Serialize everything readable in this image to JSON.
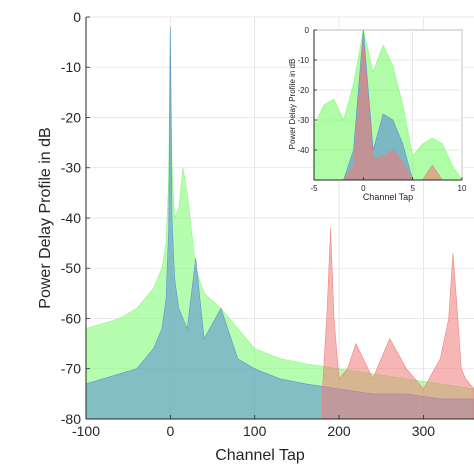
{
  "chart_data": [
    {
      "type": "area",
      "xlabel": "Channel Tap",
      "ylabel": "Power Delay Profile in dB",
      "xlim": [
        -100,
        360
      ],
      "ylim": [
        -80,
        0
      ],
      "xticks": [
        "-100",
        "0",
        "100",
        "200",
        "300"
      ],
      "yticks": [
        "0",
        "-10",
        "-20",
        "-30",
        "-40",
        "-50",
        "-60",
        "-70",
        "-80"
      ],
      "grid": true,
      "series": [
        {
          "color": "#7cfc6e",
          "x": [
            -100,
            -80,
            -60,
            -40,
            -20,
            -10,
            -5,
            -2,
            0,
            2,
            5,
            10,
            15,
            20,
            30,
            40,
            60,
            80,
            100,
            130,
            160,
            200,
            240,
            280,
            320,
            360
          ],
          "values": [
            -62,
            -61,
            -60,
            -58,
            -54,
            -50,
            -45,
            -32,
            -2,
            -30,
            -40,
            -38,
            -30,
            -35,
            -50,
            -55,
            -58,
            -62,
            -66,
            -68,
            -69,
            -70,
            -71,
            -72,
            -73,
            -74
          ]
        },
        {
          "color": "#5a8ad6",
          "x": [
            -100,
            -80,
            -60,
            -40,
            -20,
            -10,
            -5,
            -2,
            0,
            2,
            5,
            10,
            20,
            30,
            40,
            60,
            80,
            100,
            130,
            160,
            200,
            240,
            280,
            320,
            360
          ],
          "values": [
            -73,
            -72,
            -71,
            -70,
            -66,
            -62,
            -56,
            -42,
            -2,
            -40,
            -52,
            -58,
            -62,
            -48,
            -64,
            -58,
            -68,
            -70,
            -72,
            -73,
            -74,
            -75,
            -75,
            -76,
            -76
          ]
        },
        {
          "color": "#f07a7a",
          "x": [
            180,
            186,
            190,
            194,
            200,
            210,
            220,
            240,
            260,
            280,
            300,
            320,
            330,
            335,
            340,
            345,
            350,
            360
          ],
          "values": [
            -75,
            -58,
            -42,
            -60,
            -72,
            -70,
            -65,
            -72,
            -64,
            -70,
            -74,
            -68,
            -60,
            -47,
            -58,
            -70,
            -72,
            -74
          ]
        }
      ]
    },
    {
      "type": "area",
      "xlabel": "Channel Tap",
      "ylabel": "Power Delay Profile in dB",
      "xlim": [
        -5,
        10
      ],
      "ylim": [
        -50,
        0
      ],
      "xticks": [
        "-5",
        "0",
        "5",
        "10"
      ],
      "yticks": [
        "0",
        "-10",
        "-20",
        "-30",
        "-40"
      ],
      "grid": true,
      "series": [
        {
          "color": "#7cfc6e",
          "x": [
            -5,
            -4,
            -3,
            -2,
            -1,
            0,
            1,
            2,
            3,
            4,
            5,
            6,
            7,
            8,
            9,
            10
          ],
          "values": [
            -32,
            -25,
            -23,
            -30,
            -18,
            0,
            -14,
            -5,
            -12,
            -25,
            -42,
            -38,
            -36,
            -38,
            -45,
            -50
          ]
        },
        {
          "color": "#5a8ad6",
          "x": [
            -5,
            -4,
            -3,
            -2,
            -1,
            0,
            1,
            2,
            3,
            4,
            5,
            6,
            7,
            8,
            9,
            10
          ],
          "values": [
            -50,
            -50,
            -50,
            -50,
            -40,
            0,
            -40,
            -28,
            -30,
            -38,
            -50,
            -50,
            -50,
            -50,
            -50,
            -50
          ]
        },
        {
          "color": "#f07a7a",
          "x": [
            -5,
            -4,
            -3,
            -2,
            -1,
            0,
            1,
            2,
            3,
            4,
            5,
            6,
            7,
            8,
            9,
            10
          ],
          "values": [
            -50,
            -50,
            -50,
            -50,
            -45,
            -3,
            -43,
            -42,
            -40,
            -44,
            -50,
            -50,
            -45,
            -50,
            -50,
            -50
          ]
        }
      ]
    }
  ]
}
